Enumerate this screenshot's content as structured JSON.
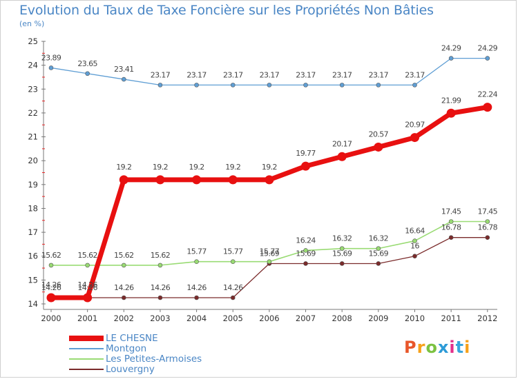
{
  "title": "Evolution du Taux de Taxe Foncière sur les Propriétés Non Bâties",
  "subtitle": "(en %)",
  "logo_text": "Proxiti",
  "logo_colors": [
    "#e8562a",
    "#f6a11a",
    "#7cc242",
    "#2d9bd7",
    "#e4308a",
    "#3aa5dc",
    "#f6a11a"
  ],
  "chart_data": {
    "type": "line",
    "title": "Evolution du Taux de Taxe Foncière sur les Propriétés Non Bâties",
    "ylabel": "(en %)",
    "xlabel": "",
    "categories": [
      "2000",
      "2001",
      "2002",
      "2003",
      "2004",
      "2005",
      "2006",
      "2007",
      "2008",
      "2009",
      "2010",
      "2011",
      "2012"
    ],
    "ylim": [
      14,
      25
    ],
    "yticks": [
      "14",
      "15",
      "16",
      "17",
      "18",
      "19",
      "20",
      "21",
      "22",
      "23",
      "24",
      "25"
    ],
    "grid": false,
    "legend_position": "bottom-left",
    "series": [
      {
        "name": "LE CHESNE",
        "color": "#e81010",
        "values": [
          14.26,
          14.26,
          19.2,
          19.2,
          19.2,
          19.2,
          19.2,
          19.77,
          20.17,
          20.57,
          20.97,
          21.99,
          22.24
        ],
        "labels": [
          "14.26",
          "14.26",
          "19.2",
          "19.2",
          "19.2",
          "19.2",
          "19.2",
          "19.77",
          "20.17",
          "20.57",
          "20.97",
          "21.99",
          "22.24"
        ]
      },
      {
        "name": "Montgon",
        "color": "#5f9ed4",
        "values": [
          23.89,
          23.65,
          23.41,
          23.17,
          23.17,
          23.17,
          23.17,
          23.17,
          23.17,
          23.17,
          23.17,
          24.29,
          24.29
        ],
        "labels": [
          "23.89",
          "23.65",
          "23.41",
          "23.17",
          "23.17",
          "23.17",
          "23.17",
          "23.17",
          "23.17",
          "23.17",
          "23.17",
          "24.29",
          "24.29"
        ]
      },
      {
        "name": "Les Petites-Armoises",
        "color": "#99db73",
        "values": [
          15.62,
          15.62,
          15.62,
          15.62,
          15.77,
          15.77,
          15.77,
          16.24,
          16.32,
          16.32,
          16.64,
          17.45,
          17.45
        ],
        "labels": [
          "15.62",
          "15.62",
          "15.62",
          "15.62",
          "15.77",
          "15.77",
          "15.77",
          "16.24",
          "16.32",
          "16.32",
          "16.64",
          "17.45",
          "17.45"
        ]
      },
      {
        "name": "Louvergny",
        "color": "#7a2a2a",
        "values": [
          14.26,
          14.26,
          14.26,
          14.26,
          14.26,
          14.26,
          15.69,
          15.69,
          15.69,
          15.69,
          16,
          16.78,
          16.78
        ],
        "labels": [
          "14.26",
          "14.26",
          "14.26",
          "14.26",
          "14.26",
          "14.26",
          "15.69",
          "15.69",
          "15.69",
          "15.69",
          "16",
          "16.78",
          "16.78"
        ]
      }
    ]
  }
}
